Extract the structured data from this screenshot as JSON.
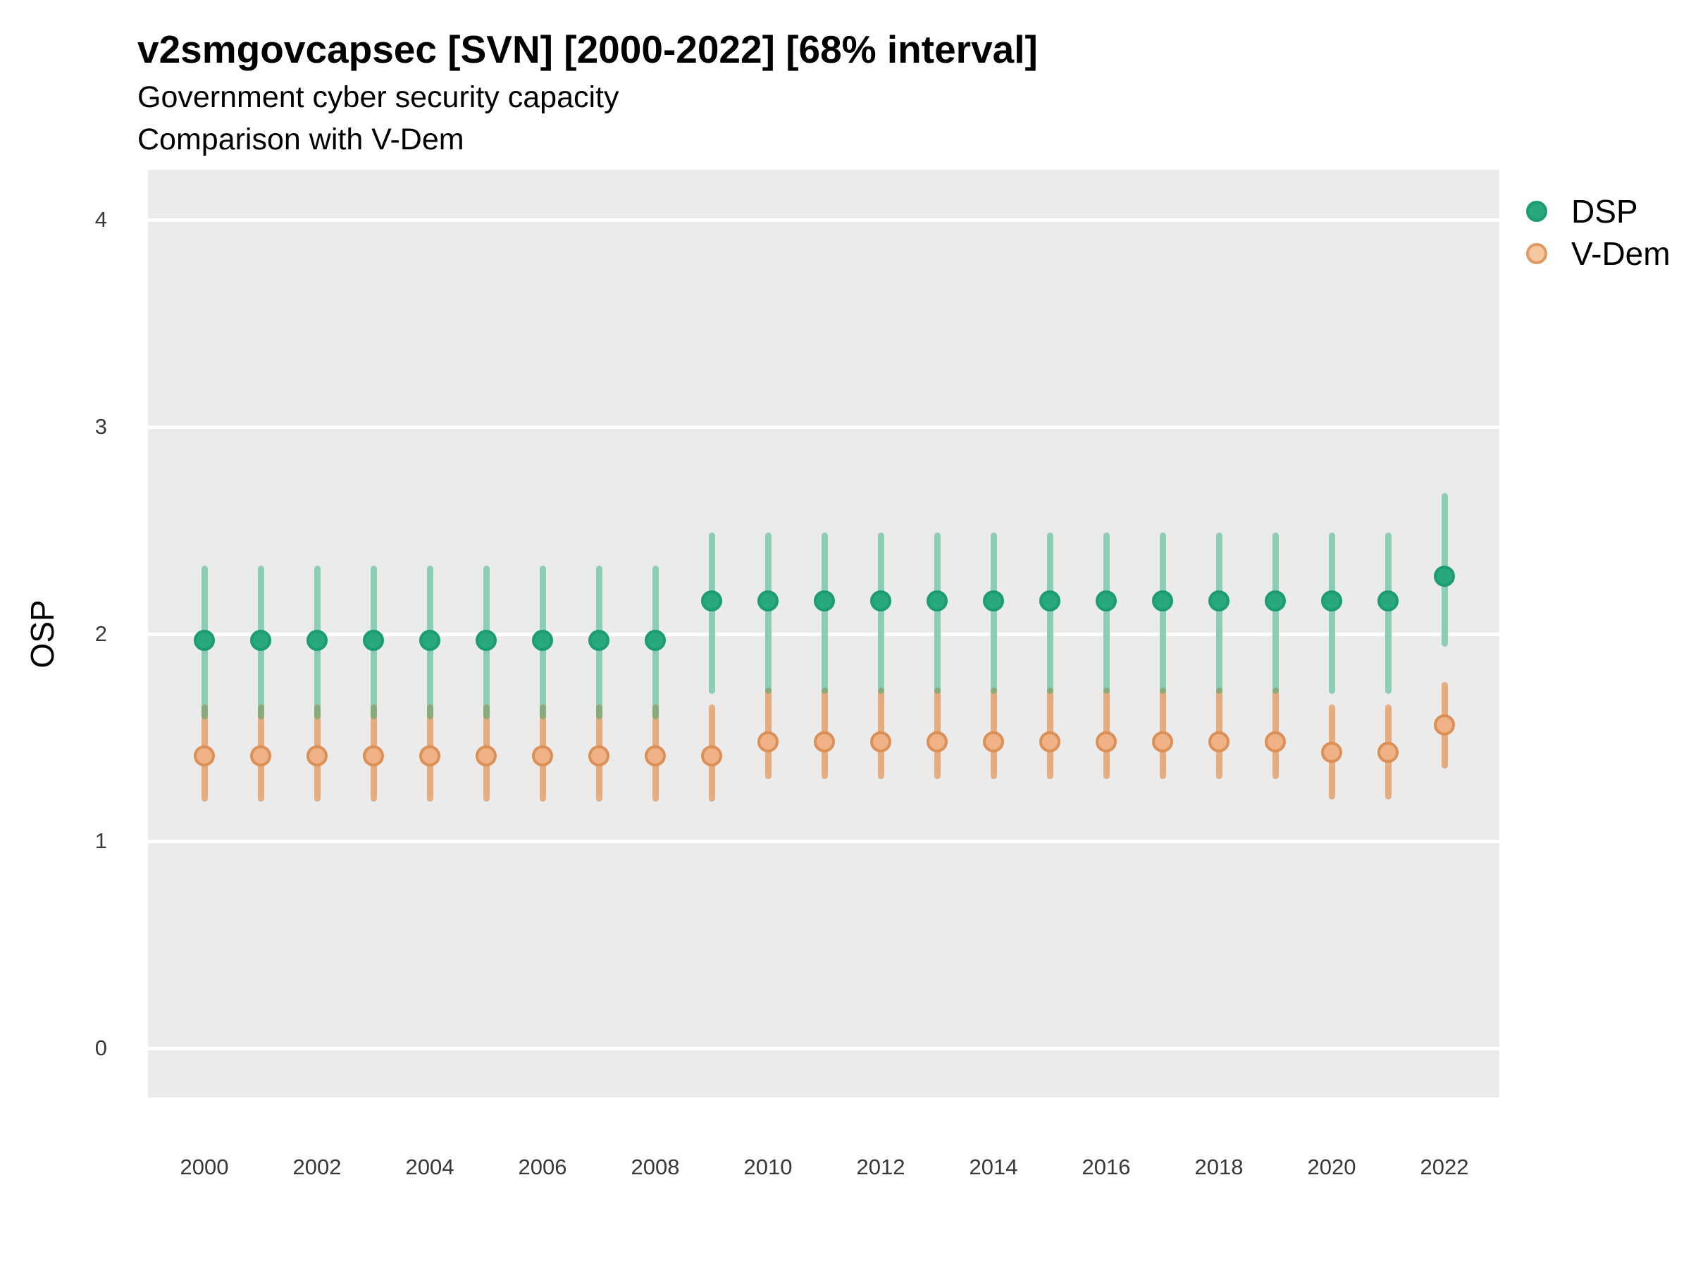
{
  "header": {
    "title": "v2smgovcapsec [SVN] [2000-2022] [68% interval]",
    "subtitle_line1": "Government cyber security capacity",
    "subtitle_line2": "Comparison with V-Dem"
  },
  "colors": {
    "panel_background": "#ebebeb",
    "gridline": "#ffffff",
    "dsp_point_fill": "#2aa87d",
    "dsp_point_border": "#1c9c72",
    "dsp_bar": "#8fccb3",
    "vdem_point_fill": "#eeb286",
    "vdem_point_border": "#dd9055",
    "vdem_bar": "#e3ad84",
    "bar_overlap": "#8aaa7d",
    "legend_vdem_fill": "#f4c7a0",
    "legend_vdem_border": "#e09a60",
    "tick_text": "#383838"
  },
  "chart_data": {
    "type": "pointrange",
    "title": "v2smgovcapsec [SVN] [2000-2022] [68% interval]",
    "subtitle": [
      "Government cyber security capacity",
      "Comparison with V-Dem"
    ],
    "interval": "68%",
    "xlabel": "",
    "ylabel": "OSP",
    "ylim": [
      -0.24,
      4.24
    ],
    "yticks": [
      0,
      1,
      2,
      3,
      4
    ],
    "xticks": [
      2000,
      2002,
      2004,
      2006,
      2008,
      2010,
      2012,
      2014,
      2016,
      2018,
      2020,
      2022
    ],
    "grid": "horizontal-major-only",
    "legend_position": "right-top",
    "x": [
      2000,
      2001,
      2002,
      2003,
      2004,
      2005,
      2006,
      2007,
      2008,
      2009,
      2010,
      2011,
      2012,
      2013,
      2014,
      2015,
      2016,
      2017,
      2018,
      2019,
      2020,
      2021,
      2022
    ],
    "series": [
      {
        "name": "DSP",
        "est": [
          1.97,
          1.97,
          1.97,
          1.97,
          1.97,
          1.97,
          1.97,
          1.97,
          1.97,
          2.16,
          2.16,
          2.16,
          2.16,
          2.16,
          2.16,
          2.16,
          2.16,
          2.16,
          2.16,
          2.16,
          2.16,
          2.16,
          2.28
        ],
        "lo": [
          1.59,
          1.59,
          1.59,
          1.59,
          1.59,
          1.59,
          1.59,
          1.59,
          1.59,
          1.71,
          1.71,
          1.71,
          1.71,
          1.71,
          1.71,
          1.71,
          1.71,
          1.71,
          1.71,
          1.71,
          1.71,
          1.71,
          1.94
        ],
        "hi": [
          2.33,
          2.33,
          2.33,
          2.33,
          2.33,
          2.33,
          2.33,
          2.33,
          2.33,
          2.49,
          2.49,
          2.49,
          2.49,
          2.49,
          2.49,
          2.49,
          2.49,
          2.49,
          2.49,
          2.49,
          2.49,
          2.49,
          2.68
        ]
      },
      {
        "name": "V-Dem",
        "est": [
          1.41,
          1.41,
          1.41,
          1.41,
          1.41,
          1.41,
          1.41,
          1.41,
          1.41,
          1.41,
          1.48,
          1.48,
          1.48,
          1.48,
          1.48,
          1.48,
          1.48,
          1.48,
          1.48,
          1.48,
          1.43,
          1.43,
          1.56
        ],
        "lo": [
          1.19,
          1.19,
          1.19,
          1.19,
          1.19,
          1.19,
          1.19,
          1.19,
          1.19,
          1.19,
          1.3,
          1.3,
          1.3,
          1.3,
          1.3,
          1.3,
          1.3,
          1.3,
          1.3,
          1.3,
          1.2,
          1.2,
          1.35
        ],
        "hi": [
          1.66,
          1.66,
          1.66,
          1.66,
          1.66,
          1.66,
          1.66,
          1.66,
          1.66,
          1.66,
          1.74,
          1.74,
          1.74,
          1.74,
          1.74,
          1.74,
          1.74,
          1.74,
          1.74,
          1.74,
          1.66,
          1.66,
          1.77
        ]
      }
    ]
  }
}
